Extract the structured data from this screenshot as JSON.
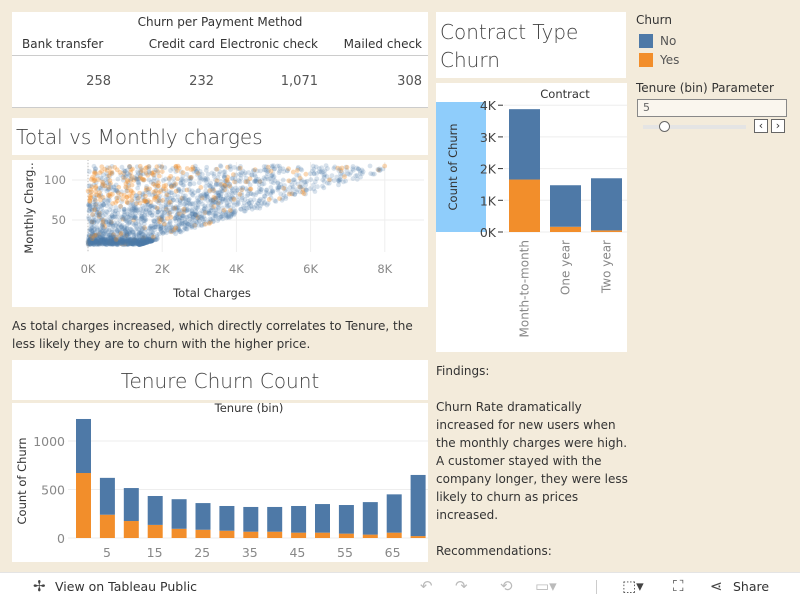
{
  "payment_table": {
    "title": "Churn per Payment Method",
    "columns": [
      {
        "label": "Bank transfer",
        "value": "258"
      },
      {
        "label": "Credit card",
        "value": "232"
      },
      {
        "label": "Electronic check",
        "value": "1,071"
      },
      {
        "label": "Mailed check",
        "value": "308"
      }
    ]
  },
  "scatter_title": "Total vs Monthly charges",
  "scatter_note": "As total charges increased, which directly correlates to Tenure, the less likely they are to churn with the higher price.",
  "tenure_title": "Tenure Churn Count",
  "contract_title_line1": "Contract Type",
  "contract_title_line2": "Churn",
  "legend": {
    "title": "Churn",
    "items": [
      {
        "label": "No",
        "color": "#4e79a7"
      },
      {
        "label": "Yes",
        "color": "#f28e2b"
      }
    ]
  },
  "parameter": {
    "label": "Tenure (bin) Parameter",
    "value": "5",
    "slider_fraction": 0.2
  },
  "findings": {
    "heading": "Findings:",
    "body": "Churn Rate dramatically increased for new users when the monthly charges were high. A customer stayed with the company longer, they were less likely to churn as prices increased.",
    "recommendations": "Recommendations:"
  },
  "toolbar": {
    "view_label": "View on Tableau Public",
    "share_label": "Share"
  },
  "chart_data": [
    {
      "type": "scatter",
      "xlabel": "Total Charges",
      "ylabel": "Monthly Charg..",
      "xlim": [
        0,
        8700
      ],
      "ylim": [
        12,
        125
      ],
      "x_ticks": [
        "0K",
        "2K",
        "4K",
        "6K",
        "8K"
      ],
      "y_ticks": [
        "50",
        "100"
      ],
      "series": [
        {
          "name": "No",
          "color": "#4e79a7"
        },
        {
          "name": "Yes",
          "color": "#f28e2b"
        }
      ]
    },
    {
      "type": "bar",
      "stacked": true,
      "title": "Contract",
      "ylabel": "Count of Churn",
      "categories": [
        "Month-to-month",
        "One year",
        "Two year"
      ],
      "y_ticks": [
        "0K",
        "1K",
        "2K",
        "3K",
        "4K"
      ],
      "ylim": [
        0,
        4100
      ],
      "series": [
        {
          "name": "No",
          "values": [
            2220,
            1310,
            1645
          ]
        },
        {
          "name": "Yes",
          "values": [
            1655,
            165,
            50
          ]
        }
      ]
    },
    {
      "type": "bar",
      "stacked": true,
      "title": "Tenure (bin)",
      "ylabel": "Count of Churn",
      "ylim": [
        0,
        1300
      ],
      "categories": [
        "0",
        "5",
        "10",
        "15",
        "20",
        "25",
        "30",
        "35",
        "40",
        "45",
        "50",
        "55",
        "60",
        "65",
        "70"
      ],
      "tick_labels": [
        "5",
        "15",
        "25",
        "35",
        "45",
        "55",
        "65"
      ],
      "y_ticks": [
        "0",
        "500",
        "1000"
      ],
      "series": [
        {
          "name": "No",
          "values": [
            557,
            380,
            340,
            298,
            305,
            275,
            255,
            255,
            255,
            275,
            295,
            295,
            335,
            395,
            630
          ]
        },
        {
          "name": "Yes",
          "values": [
            670,
            240,
            175,
            135,
            95,
            85,
            75,
            65,
            65,
            55,
            55,
            45,
            35,
            55,
            20
          ]
        }
      ]
    }
  ]
}
